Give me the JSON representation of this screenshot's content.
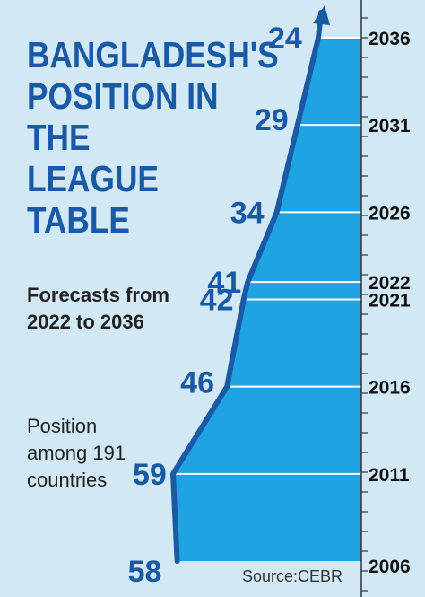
{
  "title": "BANGLADESH'S POSITION IN THE LEAGUE TABLE",
  "subtitle": "Forecasts from 2022 to 2036",
  "note": "Position among 191 countries",
  "source": "Source:CEBR",
  "colors": {
    "background": "#d2e8f4",
    "area": "#1fa3e3",
    "line": "#1a5aa5",
    "text_accent": "#1a5aa5"
  },
  "chart_data": {
    "type": "area",
    "title": "BANGLADESH'S POSITION IN THE LEAGUE TABLE",
    "subtitle": "Forecasts from 2022 to 2036",
    "orientation": "vertical-time-axis",
    "categories": [
      "2006",
      "2011",
      "2016",
      "2021",
      "2022",
      "2026",
      "2031",
      "2036"
    ],
    "series": [
      {
        "values": [
          58,
          59,
          46,
          42,
          41,
          34,
          29,
          24
        ]
      }
    ],
    "xlabel": "",
    "ylabel": "Position among 191 countries",
    "grid": true,
    "legend": "none"
  }
}
